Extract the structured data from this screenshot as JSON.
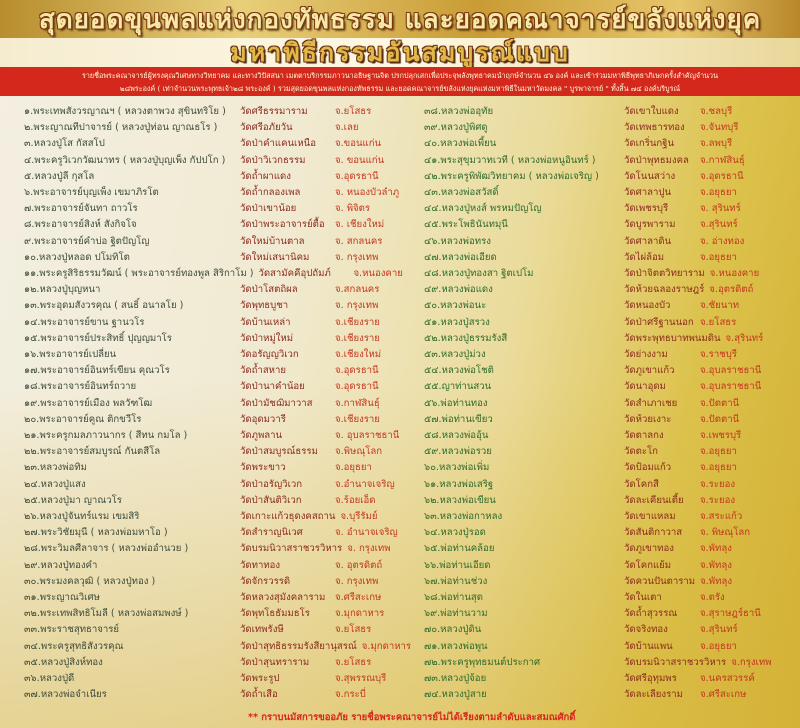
{
  "header": {
    "title": "สุดยอดขุนพลแห่งกองทัพธรรม และยอดคณาจารย์ขลังแห่งยุค",
    "subtitle": "มหาพิธีกรรมอันสมบูรณ์แบบ",
    "intro_line1": "รายชื่อพระคณาจารย์ผู้ทรงคุณวิเศษทางวิทยาคม และทางวิปัสสนา เมตตาบริกรรมภาวนาอธิษฐานจิต ปรกปลุกเสกเพื่อประจุพลังพุทธาคมนำฤกษ์จำนวน ๔๖ องค์ และเข้าร่วมมหาพิธีพุทธาภิเษกครั้งสำคัญจำนวน",
    "intro_line2": "๒๘พระองค์ ( เท่าจำนวนพระพุทธเจ้า๒๘ พระองค์ ) รวมสุดยอดขุนพลแห่งกองทัพธรรม และยอดคณาจารย์ขลังแห่งยุคแห่งมหาพิธีในมหาวัดมงคล \" บูรพาจารย์ \" ทั้งสิ้น ๗๔ องค์บริบูรณ์"
  },
  "colors": {
    "title_fill": "#f7e8a8",
    "title_outline": "#7a3b10",
    "band": "#d3281b",
    "name_left": "#3c4a3a",
    "name_right": "#2e6a2a",
    "temple": "#8a2a1c",
    "province": "#c2361f"
  },
  "left_list": [
    {
      "name": "๑.พระเทพสังวรญาณฯ ( หลวงตาพวง สุขินทริโย )",
      "temple": "วัดศรีธรรมาราม",
      "province": "จ.ยโสธร"
    },
    {
      "name": "๒.พระญาณทีปาจารย์ ( หลวงปู่ท่อน ญาณธโร )",
      "temple": "วัดศรีอภัยวัน",
      "province": "จ.เลย"
    },
    {
      "name": "๓.หลวงปู่โส กัสสโป",
      "temple": "วัดป่าคำแคนเหนือ",
      "province": "จ.ขอนแก่น"
    },
    {
      "name": "๔.พระครูวิเวกวัฒนาทร ( หลวงปู่บุญเพ็ง กัปปโก )",
      "temple": "วัดป่าวิเวกธรรม",
      "province": "จ. ขอนแก่น"
    },
    {
      "name": "๕.หลวงปู่ลี กุสโล",
      "temple": "วัดถ้ำผาแดง",
      "province": "จ.อุดรธานี"
    },
    {
      "name": "๖.พระอาจารย์บุญเพ็ง เขมาภิรโต",
      "temple": "วัดถ้ำกลองเพล",
      "province": "จ. หนองบัวลำภู"
    },
    {
      "name": "๗.พระอาจารย์จันทา ถาวโร",
      "temple": "วัดป่าเขาน้อย",
      "province": "จ. พิจิตร"
    },
    {
      "name": "๘.พระอาจารย์สิงห์ สังกิจโจ",
      "temple": "วัดป่าพระอาจารย์ตื้อ",
      "province": "จ. เชียงใหม่"
    },
    {
      "name": "๙.พระอาจารย์คำบ่อ ฐิตปัญโญ",
      "temple": "วัดใหม่บ้านตาล",
      "province": "จ. สกลนคร"
    },
    {
      "name": "๑๐.หลวงปู่หลอด ปโมทิโต",
      "temple": "วัดใหม่เสนานิคม",
      "province": "จ. กรุงเทพ"
    },
    {
      "name": "๑๑.พระครูสิริธรรมวัฒน์ ( พระอาจารย์ทองพูล สิริกาโม )",
      "temple": "วัดสามัคคีอุปถัมภ์",
      "province": "จ.หนองคาย"
    },
    {
      "name": "๑๒.หลวงปู่บุญหนา",
      "temple": "วัดป่าโสตถิผล",
      "province": "จ.สกลนคร"
    },
    {
      "name": "๑๓.พระอุดมสังวรคุณ ( สนธิ์ อนาลโย )",
      "temple": "วัดพุทธบูชา",
      "province": "จ. กรุงเทพ"
    },
    {
      "name": "๑๔.พระอาจารย์ขาน ฐานวโร",
      "temple": "วัดบ้านเหล่า",
      "province": "จ.เชียงราย"
    },
    {
      "name": "๑๕.พระอาจารย์ประสิทธิ์ ปุญญมาโร",
      "temple": "วัดป่าหมู่ใหม่",
      "province": "จ.เชียงราย"
    },
    {
      "name": "๑๖.พระอาจารย์เปลี่ยน",
      "temple": "วัดอรัญญวิเวก",
      "province": "จ.เชียงใหม่"
    },
    {
      "name": "๑๗.พระอาจารย์อินทร์เขียน คุณวโร",
      "temple": "วัดถ้ำสหาย",
      "province": "จ.อุดรธานี"
    },
    {
      "name": "๑๘.พระอาจารย์อินทร์ถวาย",
      "temple": "วัดป่านาคำน้อย",
      "province": "จ.อุดรธานี"
    },
    {
      "name": "๑๙.พระอาจารย์เมือง พลวัฑโฒ",
      "temple": "วัดป่ามัชฌิมาวาส",
      "province": "จ.กาฬสินธุ์"
    },
    {
      "name": "๒๐.พระอาจารย์คูณ ติกขวีโร",
      "temple": "วัดอุดมวารี",
      "province": "จ.เชียงราย"
    },
    {
      "name": "๒๑.พระครูกมลภาวนากร ( สีทน กมโล )",
      "temple": "วัดภูพลาน",
      "province": "จ. อุบลราชธานี"
    },
    {
      "name": "๒๒.พระอาจารย์สมบูรณ์ กันตสีโล",
      "temple": "วัดป่าสมบูรณ์ธรรม",
      "province": "จ.พิษณุโลก"
    },
    {
      "name": "๒๓.หลวงพ่อทิม",
      "temple": "วัดพระขาว",
      "province": "จ.อยุธยา"
    },
    {
      "name": "๒๔.หลวงปู่แสง",
      "temple": "วัดป่าอรัญวิเวก",
      "province": "จ.อำนาจเจริญ"
    },
    {
      "name": "๒๕.หลวงปู่มา ญาณวโร",
      "temple": "วัดป่าสันติวิเวก",
      "province": "จ.ร้อยเอ็ด"
    },
    {
      "name": "๒๖.หลวงปู่จันทร์แรม เขมสิริ",
      "temple": "วัดเกาะแก้วธุดงคสถาน",
      "province": "จ.บุรีรัมย์"
    },
    {
      "name": "๒๗.พระวิชัยมุนี ( หลวงพ่อมหาโอ )",
      "temple": "วัดสำราญนิเวศ",
      "province": "จ. อำนาจเจริญ"
    },
    {
      "name": "๒๘.พระวิมลศีลาจาร ( หลวงพ่ออำนวย )",
      "temple": "วัดบรมนิวาสราชวรวิหาร",
      "province": "จ. กรุงเทพ"
    },
    {
      "name": "๒๙.หลวงปู่ทองคำ",
      "temple": "วัดทาทอง",
      "province": "จ. อุตรดิตถ์"
    },
    {
      "name": "๓๐.พระมงคลวุฒิ ( หลวงปู่ทอง )",
      "temple": "วัดจักรวรรดิ",
      "province": "จ. กรุงเทพ"
    },
    {
      "name": "๓๑.พระญาณวิเศษ",
      "temple": "วัดหลวงสุมังคลาราม",
      "province": "จ.ศรีสะเกษ"
    },
    {
      "name": "๓๒.พระเทพสิทธิโมลี ( หลวงพ่อสมพงษ์ )",
      "temple": "วัดพุทโธธัมมธโร",
      "province": "จ.มุกดาหาร"
    },
    {
      "name": "๓๓.พระราชสุทธาจารย์",
      "temple": "วัดเทพรังษี",
      "province": "จ.ยโสธร"
    },
    {
      "name": "๓๔.พระครูสุทธิสังวรคุณ",
      "temple": "วัดป่าสุทธิธรรมรังสียานุสรณ์",
      "province": "จ.มุกดาหาร"
    },
    {
      "name": "๓๕.หลวงปู่สิงห์ทอง",
      "temple": "วัดป่าสุนทราราม",
      "province": "จ.ยโสธร"
    },
    {
      "name": "๓๖.หลวงปู่ดี",
      "temple": "วัดพระรูป",
      "province": "จ.สุพรรณบุรี"
    },
    {
      "name": "๓๗.หลวงพ่อจำเนียร",
      "temple": "วัดถ้ำเสือ",
      "province": "จ.กระบี่"
    }
  ],
  "right_list": [
    {
      "name": "๓๘.หลวงพ่ออุทัย",
      "temple": "วัดเขาใบแดง",
      "province": "จ.ชลบุรี"
    },
    {
      "name": "๓๙.หลวงปู่พิศดู",
      "temple": "วัดเทพธารทอง",
      "province": "จ.จันทบุรี"
    },
    {
      "name": "๔๐.หลวงพ่อเพี้ยน",
      "temple": "วัดเกริ่นกฐิน",
      "province": "จ.ลพบุรี"
    },
    {
      "name": "๔๑.พระสุขุมวาทเวที ( หลวงพ่อหนูอินทร์ )",
      "temple": "วัดป่าพุทธมงคล",
      "province": "จ.กาฬสินธุ์"
    },
    {
      "name": "๔๒.พระครูพิพัฒวิทยาคม ( หลวงพ่อเจริญ )",
      "temple": "วัดโนนสว่าง",
      "province": "จ.อุดรธานี"
    },
    {
      "name": "๔๓.หลวงพ่อสวัสดิ์",
      "temple": "วัดศาลาปูน",
      "province": "จ.อยุธยา"
    },
    {
      "name": "๔๔.หลวงปู่หงส์ พรหมปัญโญ",
      "temple": "วัดเพชรบุรี",
      "province": "จ. สุรินทร์"
    },
    {
      "name": "๔๕.พระโพธินันทมุนี",
      "temple": "วัดบูรพาราม",
      "province": "จ.สุรินทร์"
    },
    {
      "name": "๔๖.หลวงพ่อทรง",
      "temple": "วัดศาลาดิน",
      "province": "จ. อ่างทอง"
    },
    {
      "name": "๔๗.หลวงพ่อเอียด",
      "temple": "วัดไผ่ล้อม",
      "province": "จ.อยุธยา"
    },
    {
      "name": "๔๘.หลวงปู่ทองสา ฐิตเปโม",
      "temple": "วัดป่าจิตตวิทยาราม",
      "province": "จ.หนองคาย"
    },
    {
      "name": "๔๙.หลวงพ่อแดง",
      "temple": "วัดห้วยฉลองราษฎร์",
      "province": "จ.อุตรดิตถ์"
    },
    {
      "name": "๕๐.หลวงพ่อนะ",
      "temple": "วัดหนองบัว",
      "province": "จ.ชัยนาท"
    },
    {
      "name": "๕๑.หลวงปู่สรวง",
      "temple": "วัดป่าศรีฐานนอก",
      "province": "จ.ยโสธร"
    },
    {
      "name": "๕๒.หลวงปู่ธรรมรังสี",
      "temple": "วัดพระพุทธบาทพนมดิน",
      "province": "จ.สุรินทร์"
    },
    {
      "name": "๕๓.หลวงปู่ม่วง",
      "temple": "วัดย่างงาม",
      "province": "จ.ราชบุรี"
    },
    {
      "name": "๕๔.หลวงพ่อโชติ",
      "temple": "วัดภูเขาแก้ว",
      "province": "จ.อุบลราชธานี"
    },
    {
      "name": "๕๕.ญาท่านสวน",
      "temple": "วัดนาอุดม",
      "province": "จ.อุบลราชธานี"
    },
    {
      "name": "๕๖.พ่อท่านทอง",
      "temple": "วัดสำเภาเชย",
      "province": "จ.ปัตตานี"
    },
    {
      "name": "๕๗.พ่อท่านเขียว",
      "temple": "วัดห้วยเงาะ",
      "province": "จ.ปัตตานี"
    },
    {
      "name": "๕๘.หลวงพ่ออุ้น",
      "temple": "วัดตาลกง",
      "province": "จ.เพชรบุรี"
    },
    {
      "name": "๕๙.หลวงพ่อรวย",
      "temple": "วัดตะโก",
      "province": "จ.อยุธยา"
    },
    {
      "name": "๖๐.หลวงพ่อเพิ่ม",
      "temple": "วัดป้อมแก้ว",
      "province": "จ.อยุธยา"
    },
    {
      "name": "๖๑.หลวงพ่อเสริฐ",
      "temple": "วัดโคกสี",
      "province": "จ.ระยอง"
    },
    {
      "name": "๖๒.หลวงพ่อเขียน",
      "temple": "วัดละเคียนเตี้ย",
      "province": "จ.ระยอง"
    },
    {
      "name": "๖๓.หลวงพ่อกาหลง",
      "temple": "วัดเขาแหลม",
      "province": "จ.สระแก้ว"
    },
    {
      "name": "๖๔.หลวงปู่รอด",
      "temple": "วัดสันติกาวาส",
      "province": "จ. พิษณุโลก"
    },
    {
      "name": "๖๕.พ่อท่านคล้อย",
      "temple": "วัดภูเขาทอง",
      "province": "จ.พัทลุง"
    },
    {
      "name": "๖๖.พ่อท่านเอียด",
      "temple": "วัดโคกแย้ม",
      "province": "จ.พัทลุง"
    },
    {
      "name": "๖๗.พ่อท่านช่วง",
      "temple": "วัดควนปันตาราม",
      "province": "จ.พัทลุง"
    },
    {
      "name": "๖๘.พ่อท่านสุด",
      "temple": "วัดในเตา",
      "province": "จ.ตรัง"
    },
    {
      "name": "๖๙.พ่อท่านวาม",
      "temple": "วัดถ้ำสุวรรณ",
      "province": "จ.สุราษฎร์ธานี"
    },
    {
      "name": "๗๐.หลวงปู่ดิน",
      "temple": "วัดจริงทอง",
      "province": "จ.สุรินทร์"
    },
    {
      "name": "๗๑.หลวงพ่อพูน",
      "temple": "วัดบ้านแพน",
      "province": "จ.อยุธยา"
    },
    {
      "name": "๗๒.พระครูพุทธมนต์ประกาศ",
      "temple": "วัดบรมนิวาสราชวรวิหาร",
      "province": "จ.กรุงเทพ"
    },
    {
      "name": "๗๓.หลวงปู่จ้อย",
      "temple": "วัดศรีอุทุมพร",
      "province": "จ.นครสวรรค์"
    },
    {
      "name": "๗๔.หลวงปู่สาย",
      "temple": "วัดละเลียงราม",
      "province": "จ.ศรีสะเกษ"
    }
  ],
  "footer": {
    "note": "** กราบนมัสการขออภัย รายชื่อพระคณาจารย์ไม่ได้เรียงตามลำดับและสมณศักดิ์"
  }
}
